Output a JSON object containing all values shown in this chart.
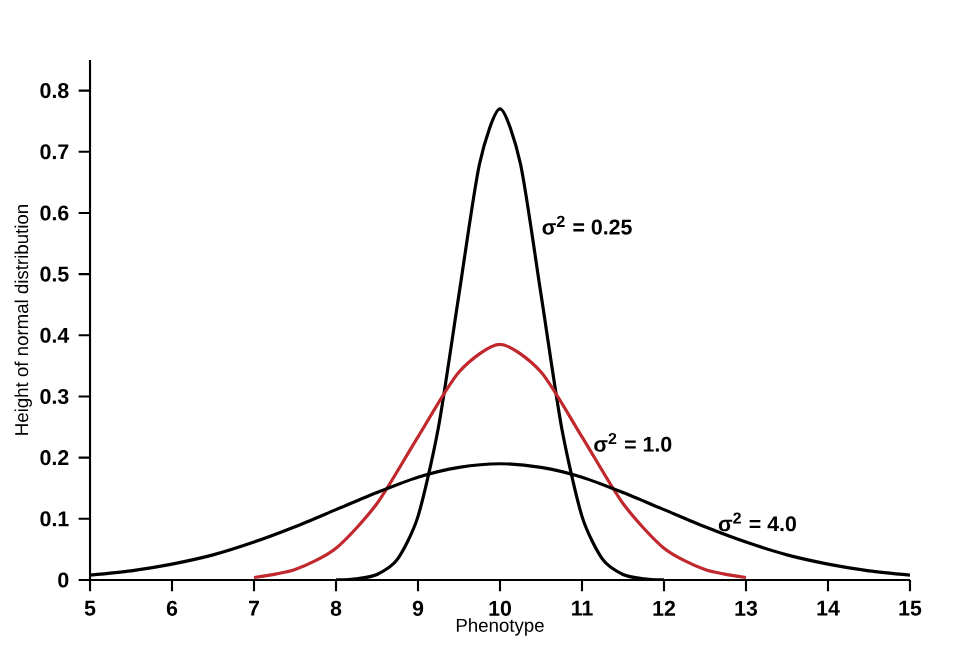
{
  "chart_data": {
    "type": "line",
    "xlabel": "Phenotype",
    "ylabel": "Height of normal distribution",
    "xlim": [
      5,
      15
    ],
    "ylim": [
      0,
      0.85
    ],
    "xticks": [
      5,
      6,
      7,
      8,
      9,
      10,
      11,
      12,
      13,
      14,
      15
    ],
    "yticks": [
      0,
      0.1,
      0.2,
      0.3,
      0.4,
      0.5,
      0.6,
      0.7,
      0.8
    ],
    "grid": false,
    "legend": false,
    "marker": "none",
    "line_style": "solid",
    "series": [
      {
        "name": "σ$^{2}$ = 0.25",
        "color": "#000000",
        "x": [
          8,
          8.25,
          8.5,
          8.75,
          9,
          9.25,
          9.5,
          9.75,
          10,
          10.25,
          10.5,
          10.75,
          11,
          11.25,
          11.5,
          11.75,
          12
        ],
        "values": [
          0,
          0.002,
          0.009,
          0.034,
          0.104,
          0.25,
          0.467,
          0.68,
          0.77,
          0.68,
          0.467,
          0.25,
          0.104,
          0.034,
          0.009,
          0.002,
          0
        ]
      },
      {
        "name": "σ$^{2}$ = 1.0",
        "color": "#c0282d",
        "x": [
          7,
          7.5,
          8,
          8.5,
          9,
          9.5,
          10,
          10.5,
          11,
          11.5,
          12,
          12.5,
          13
        ],
        "values": [
          0.004,
          0.017,
          0.052,
          0.125,
          0.234,
          0.34,
          0.385,
          0.34,
          0.234,
          0.125,
          0.052,
          0.017,
          0.004
        ]
      },
      {
        "name": "σ$^{2}$ = 4.0",
        "color": "#000000",
        "x": [
          5,
          5.5,
          6,
          6.5,
          7,
          7.5,
          8,
          8.5,
          9,
          9.5,
          10,
          10.5,
          11,
          11.5,
          12,
          12.5,
          13,
          13.5,
          14,
          14.5,
          15
        ],
        "values": [
          0.008,
          0.015,
          0.026,
          0.041,
          0.062,
          0.087,
          0.115,
          0.143,
          0.168,
          0.184,
          0.19,
          0.184,
          0.168,
          0.143,
          0.115,
          0.087,
          0.062,
          0.041,
          0.026,
          0.015,
          0.008
        ]
      }
    ]
  }
}
